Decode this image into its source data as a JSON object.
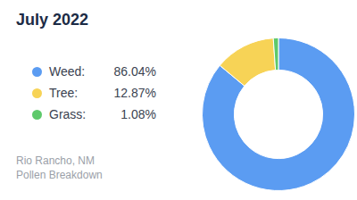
{
  "chart_data": {
    "type": "doughnut",
    "title": "July 2022",
    "subtitle": [
      "Rio Rancho, NM",
      "Pollen Breakdown"
    ],
    "categories": [
      "Weed:",
      "Tree:",
      "Grass:"
    ],
    "values": [
      86.04,
      12.87,
      1.08
    ],
    "value_labels": [
      "86.04%",
      "12.87%",
      "1.08%"
    ],
    "colors": [
      "#5b9cf2",
      "#f7d356",
      "#5ec96b"
    ],
    "legend": "left"
  }
}
